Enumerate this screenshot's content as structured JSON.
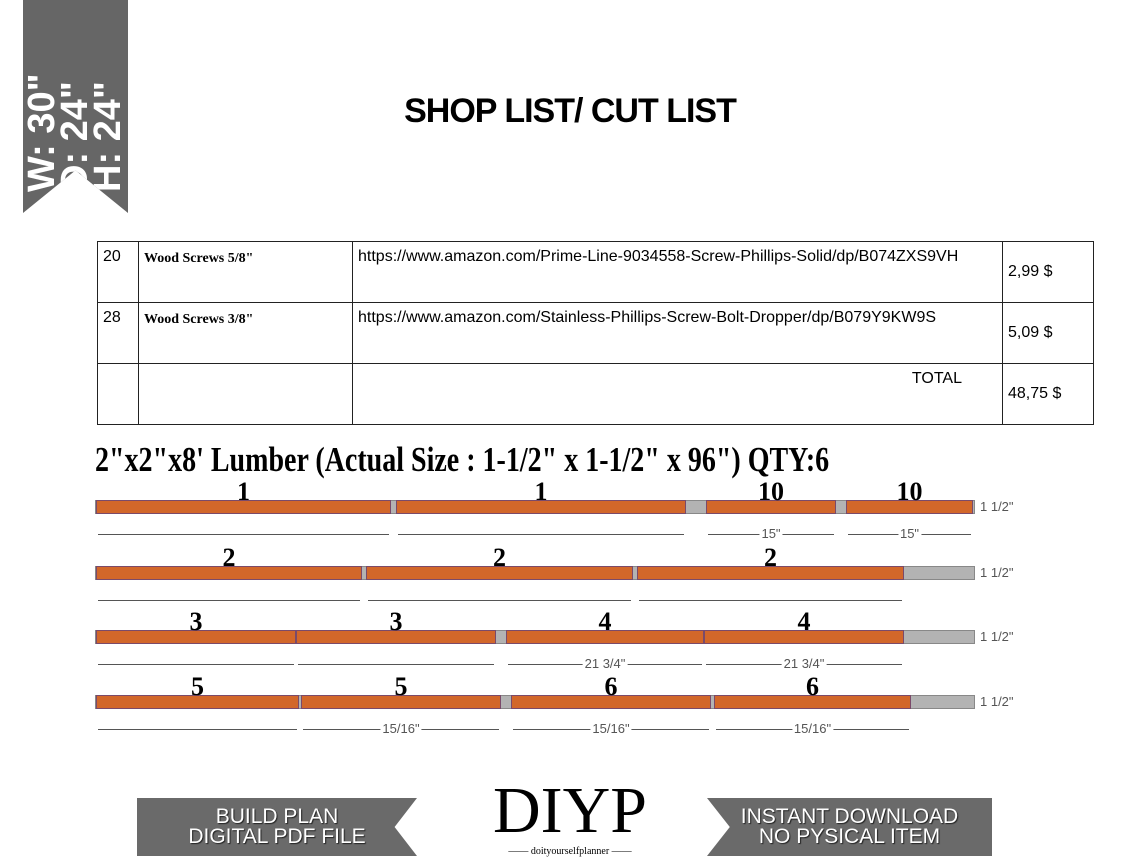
{
  "ribbon": {
    "width": "W: 30\"",
    "depth": "D: 24\"",
    "height": "H: 24\""
  },
  "title": "SHOP LIST/ CUT LIST",
  "table": {
    "rows": [
      {
        "qty": "20",
        "item": "Wood Screws 5/8\"",
        "link": "https://www.amazon.com/Prime-Line-9034558-Screw-Phillips-Solid/dp/B074ZXS9VH",
        "price": "2,99 $"
      },
      {
        "qty": "28",
        "item": "Wood Screws 3/8\"",
        "link": "https://www.amazon.com/Stainless-Phillips-Screw-Bolt-Dropper/dp/B079Y9KW9S",
        "price": "5,09 $"
      },
      {
        "qty": "",
        "item": "",
        "link": "TOTAL",
        "price": "48,75 $"
      }
    ]
  },
  "lumber_title": "2\"x2\"x8' Lumber (Actual Size : 1-1/2\" x 1-1/2\" x 96\") QTY:6",
  "thickness": "1 1/2\"",
  "boards": [
    {
      "pieces": [
        {
          "label": "1",
          "dim": ""
        },
        {
          "label": "1",
          "dim": ""
        },
        {
          "label": "10",
          "dim": "15\""
        },
        {
          "label": "10",
          "dim": "15\""
        }
      ]
    },
    {
      "pieces": [
        {
          "label": "2",
          "dim": ""
        },
        {
          "label": "2",
          "dim": ""
        },
        {
          "label": "2",
          "dim": ""
        }
      ]
    },
    {
      "pieces": [
        {
          "label": "3",
          "dim": ""
        },
        {
          "label": "3",
          "dim": ""
        },
        {
          "label": "4",
          "dim": "21 3/4\""
        },
        {
          "label": "4",
          "dim": "21 3/4\""
        }
      ]
    },
    {
      "pieces": [
        {
          "label": "5",
          "dim": ""
        },
        {
          "label": "5",
          "dim": "15/16\""
        },
        {
          "label": "6",
          "dim": "15/16\""
        },
        {
          "label": "6",
          "dim": "15/16\""
        }
      ]
    }
  ],
  "colors": {
    "wood": "#d2672a",
    "waste": "#b3b3b3",
    "banner": "#6a6a6a"
  },
  "banner_left": [
    "BUILD PLAN",
    "DIGITAL PDF FILE"
  ],
  "banner_right": [
    "INSTANT DOWNLOAD",
    "NO PYSICAL ITEM"
  ],
  "logo": {
    "text": "DIYP",
    "sub": "doityourselfplanner"
  }
}
